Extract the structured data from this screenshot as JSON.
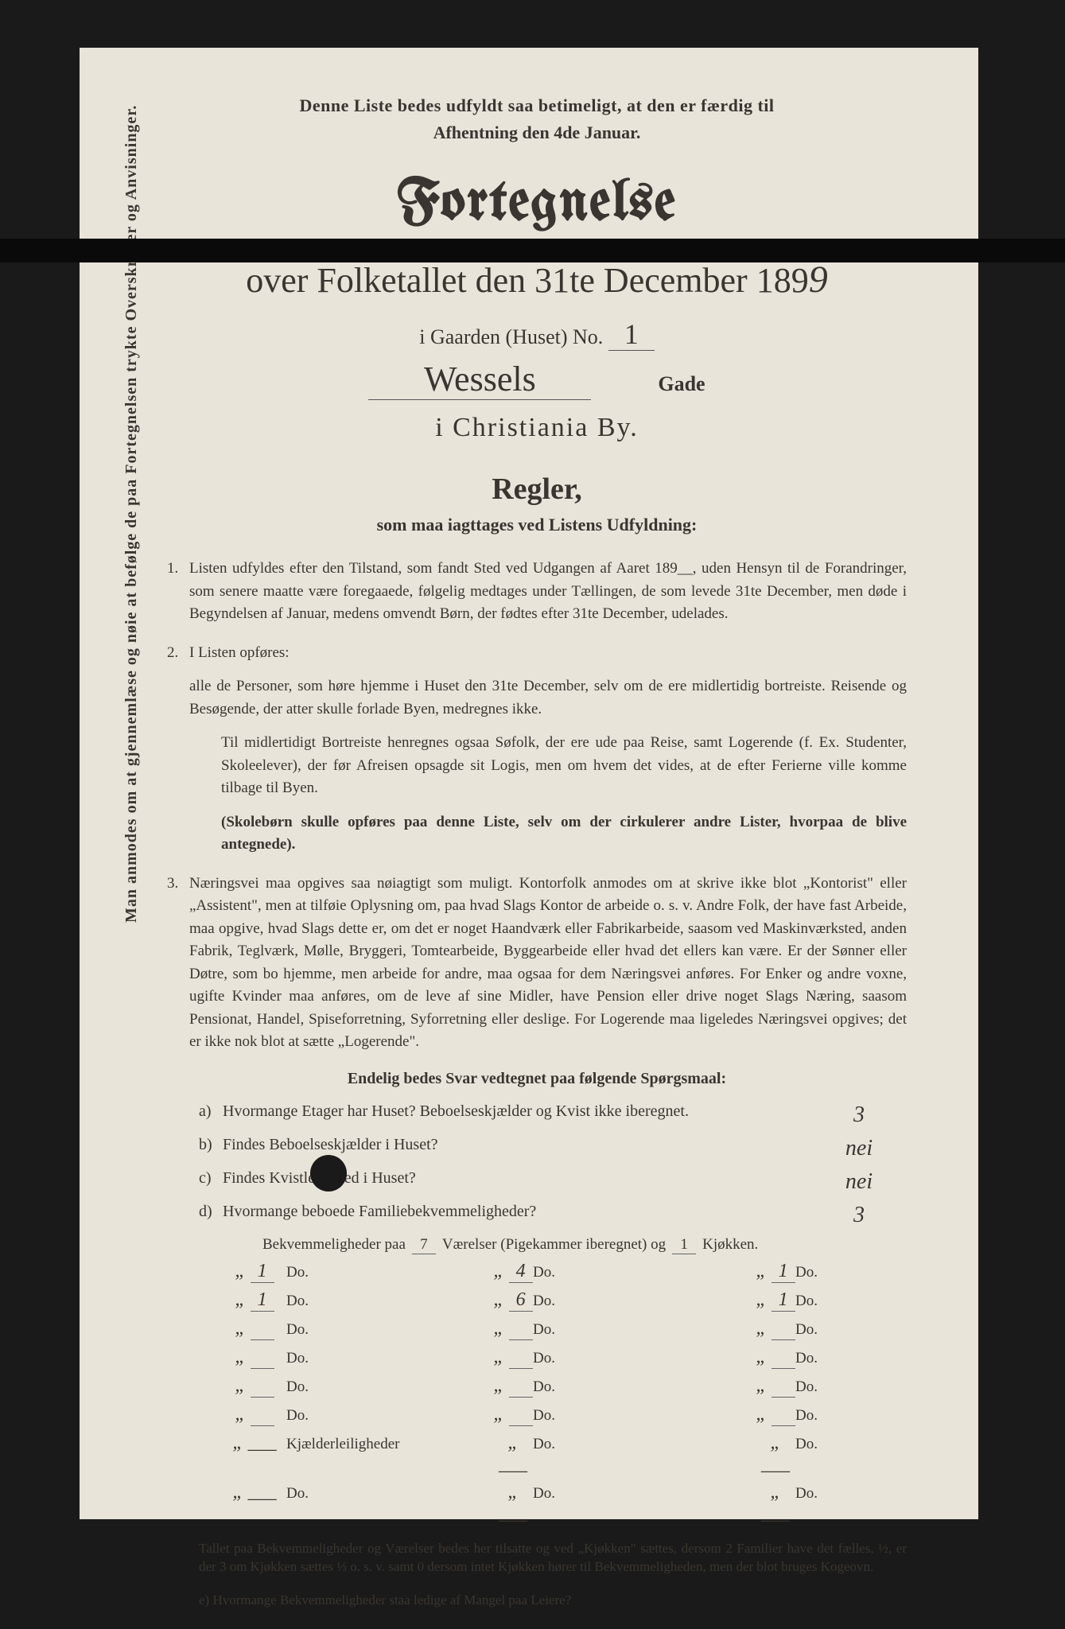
{
  "header": {
    "note1": "Denne Liste bedes udfyldt saa betimeligt, at den er færdig til",
    "note2": "Afhentning den 4de Januar.",
    "title": "Fortegnelse",
    "subtitle_prefix": "over Folketallet den 31te December 189",
    "year_digit": "9",
    "gaarden_label": "i Gaarden (Huset) No.",
    "gaarden_no": "1",
    "street_name": "Wessels",
    "gade_label": "Gade",
    "city": "i Christiania By."
  },
  "regler": {
    "heading": "Regler,",
    "subheading": "som maa iagttages ved Listens Udfyldning:"
  },
  "rules": {
    "r1": "Listen udfyldes efter den Tilstand, som fandt Sted ved Udgangen af Aaret 189__, uden Hensyn til de Forandringer, som senere maatte være foregaaede, følgelig medtages under Tællingen, de som levede 31te December, men døde i Begyndelsen af Januar, medens omvendt Børn, der fødtes efter 31te December, udelades.",
    "r2a": "I Listen opføres:",
    "r2b": "alle de Personer, som høre hjemme i Huset den 31te December, selv om de ere midlertidig bortreiste. Reisende og Besøgende, der atter skulle forlade Byen, medregnes ikke.",
    "r2c": "Til midlertidigt Bortreiste henregnes ogsaa Søfolk, der ere ude paa Reise, samt Logerende (f. Ex. Studenter, Skoleelever), der før Afreisen opsagde sit Logis, men om hvem det vides, at de efter Ferierne ville komme tilbage til Byen.",
    "r2d": "(Skolebørn skulle opføres paa denne Liste, selv om der cirkulerer andre Lister, hvorpaa de blive antegnede).",
    "r3": "Næringsvei maa opgives saa nøiagtigt som muligt. Kontorfolk anmodes om at skrive ikke blot „Kontorist\" eller „Assistent\", men at tilføie Oplysning om, paa hvad Slags Kontor de arbeide o. s. v. Andre Folk, der have fast Arbeide, maa opgive, hvad Slags dette er, om det er noget Haandværk eller Fabrikarbeide, saasom ved Maskinværksted, anden Fabrik, Teglværk, Mølle, Bryggeri, Tomtearbeide, Byggearbeide eller hvad det ellers kan være. Er der Sønner eller Døtre, som bo hjemme, men arbeide for andre, maa ogsaa for dem Næringsvei anføres. For Enker og andre voxne, ugifte Kvinder maa anføres, om de leve af sine Midler, have Pension eller drive noget Slags Næring, saasom Pensionat, Handel, Spiseforretning, Syforretning eller deslige. For Logerende maa ligeledes Næringsvei opgives; det er ikke nok blot at sætte „Logerende\"."
  },
  "questions": {
    "heading": "Endelig bedes Svar vedtegnet paa følgende Spørgsmaal:",
    "qa": {
      "label": "a)",
      "text": "Hvormange Etager har Huset? Beboelseskjælder og Kvist ikke iberegnet.",
      "answer": "3"
    },
    "qb": {
      "label": "b)",
      "text": "Findes Beboelseskjælder i Huset?",
      "answer": "nei"
    },
    "qc": {
      "label": "c)",
      "text": "Findes Kvistleilighed i Huset?",
      "answer": "nei"
    },
    "qd": {
      "label": "d)",
      "text": "Hvormange beboede Familiebekvemmeligheder?",
      "answer": "3"
    }
  },
  "bekv": {
    "head_line": "Bekvemmeligheder paa",
    "head_v": "7",
    "head_mid": "Værelser (Pigekammer iberegnet) og",
    "head_k": "1",
    "head_end": "Kjøkken.",
    "rows": [
      {
        "n": "1",
        "v": "4",
        "k": "1"
      },
      {
        "n": "1",
        "v": "6",
        "k": "1"
      },
      {
        "n": "",
        "v": "",
        "k": ""
      },
      {
        "n": "",
        "v": "",
        "k": ""
      },
      {
        "n": "",
        "v": "",
        "k": ""
      },
      {
        "n": "",
        "v": "",
        "k": ""
      }
    ],
    "kjael_label": "Kjælderleiligheder",
    "do_label": "Do."
  },
  "footnotes": {
    "f1": "Tallet paa Bekvemmeligheder og Værelser bedes her tilsatte og ved „Kjøkken\" sættes, dersom 2 Familier have det fælles, ½, er der 3 om Kjøkken sættes ⅓ o. s. v. samt 0 dersom intet Kjøkken hører til Bekvemmeligheden, men der blot bruges Kogeovn.",
    "f2": "e) Hvormange Bekvemmeligheder staa ledige af Mangel paa Leiere?"
  },
  "sidebar": "Man anmodes om at gjennemlæse og nøie at befølge de paa Fortegnelsen trykte Overskrifter og Anvisninger."
}
